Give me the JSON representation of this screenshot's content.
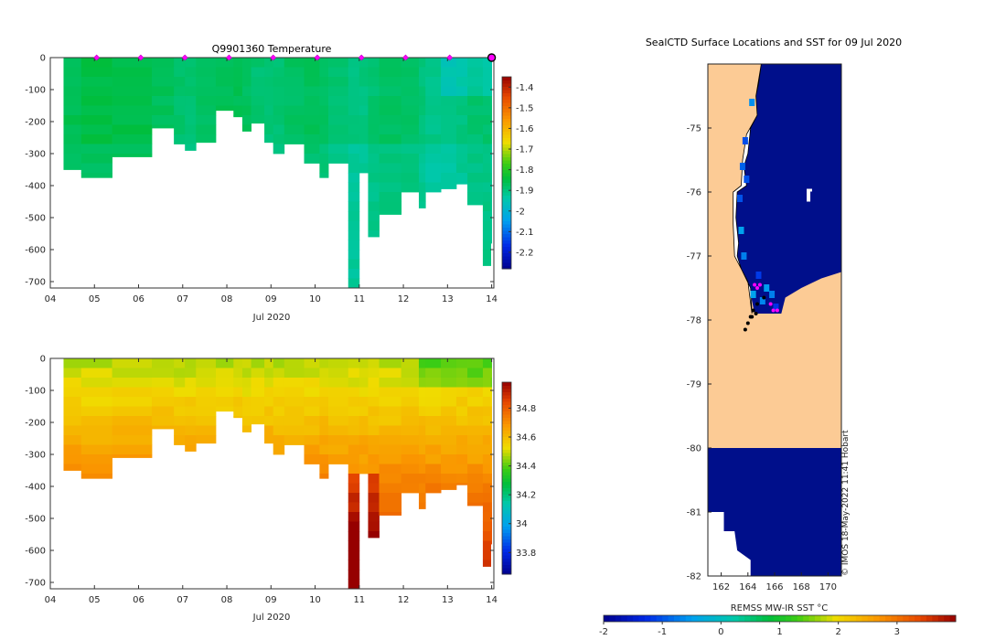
{
  "chart_data": [
    {
      "id": "temperature-section",
      "type": "heatmap",
      "title": "Q9901360  Temperature",
      "xlabel": "Jul 2020",
      "ylabel": "",
      "x_ticks": [
        "04",
        "05",
        "06",
        "07",
        "08",
        "09",
        "10",
        "11",
        "12",
        "13",
        "14"
      ],
      "x_range": [
        4,
        14.05
      ],
      "y_ticks": [
        0,
        -100,
        -200,
        -300,
        -400,
        -500,
        -600,
        -700
      ],
      "ylim": [
        -720,
        0
      ],
      "colorbar": {
        "min": -2.28,
        "max": -1.35,
        "ticks": [
          -1.4,
          -1.5,
          -1.6,
          -1.7,
          -1.8,
          -1.9,
          -2,
          -2.1,
          -2.2
        ]
      },
      "marker_days": [
        5,
        6,
        7,
        8,
        9,
        10,
        11,
        12,
        13
      ],
      "last_marker_day": 14,
      "profile_depths": [
        {
          "day": 4.3,
          "depth": -350
        },
        {
          "day": 4.7,
          "depth": -375
        },
        {
          "day": 5.4,
          "depth": -310
        },
        {
          "day": 6.3,
          "depth": -220
        },
        {
          "day": 6.8,
          "depth": -270
        },
        {
          "day": 7.05,
          "depth": -290
        },
        {
          "day": 7.3,
          "depth": -265
        },
        {
          "day": 7.75,
          "depth": -165
        },
        {
          "day": 8.15,
          "depth": -185
        },
        {
          "day": 8.35,
          "depth": -230
        },
        {
          "day": 8.55,
          "depth": -205
        },
        {
          "day": 8.85,
          "depth": -265
        },
        {
          "day": 9.05,
          "depth": -300
        },
        {
          "day": 9.3,
          "depth": -270
        },
        {
          "day": 9.75,
          "depth": -330
        },
        {
          "day": 10.1,
          "depth": -375
        },
        {
          "day": 10.3,
          "depth": -330
        },
        {
          "day": 10.75,
          "depth": -720
        },
        {
          "day": 11.0,
          "depth": -360
        },
        {
          "day": 11.2,
          "depth": -560
        },
        {
          "day": 11.45,
          "depth": -490
        },
        {
          "day": 11.95,
          "depth": -420
        },
        {
          "day": 12.35,
          "depth": -470
        },
        {
          "day": 12.5,
          "depth": -420
        },
        {
          "day": 12.85,
          "depth": -410
        },
        {
          "day": 13.2,
          "depth": -395
        },
        {
          "day": 13.45,
          "depth": -460
        },
        {
          "day": 13.8,
          "depth": -650
        },
        {
          "day": 13.98,
          "depth": -580
        }
      ]
    },
    {
      "id": "salinity-section",
      "type": "heatmap",
      "title": "",
      "xlabel": "Jul 2020",
      "ylabel": "",
      "x_ticks": [
        "04",
        "05",
        "06",
        "07",
        "08",
        "09",
        "10",
        "11",
        "12",
        "13",
        "14"
      ],
      "x_range": [
        4,
        14.05
      ],
      "y_ticks": [
        0,
        -100,
        -200,
        -300,
        -400,
        -500,
        -600,
        -700
      ],
      "ylim": [
        -720,
        0
      ],
      "colorbar": {
        "min": 33.65,
        "max": 34.98,
        "ticks": [
          34.8,
          34.6,
          34.4,
          34.2,
          34,
          33.8
        ]
      }
    },
    {
      "id": "sst-map",
      "type": "heatmap",
      "title": "SealCTD Surface Locations and SST for 09 Jul 2020",
      "x_ticks": [
        162,
        164,
        166,
        168,
        170
      ],
      "x_range": [
        161,
        171
      ],
      "y_ticks": [
        -75,
        -76,
        -77,
        -78,
        -79,
        -80,
        -81,
        -82
      ],
      "ylim": [
        -82,
        -74
      ],
      "colorbar": {
        "label": "REMSS MW-IR SST °C",
        "min": -2,
        "max": 4,
        "ticks": [
          -2,
          -1,
          0,
          1,
          2,
          3
        ]
      },
      "credit": "© IMOS 18-May-2022 11:41 Hobart",
      "land_color": "#fccb95",
      "ocean_color": "#000f8b",
      "track_points": [
        [
          164.5,
          -77.45
        ],
        [
          164.7,
          -77.5
        ],
        [
          164.9,
          -77.45
        ],
        [
          165.7,
          -77.75
        ],
        [
          165.2,
          -77.65
        ],
        [
          164.4,
          -77.85
        ],
        [
          164.6,
          -77.9
        ],
        [
          164.2,
          -77.95
        ],
        [
          164.0,
          -78.05
        ],
        [
          163.8,
          -78.15
        ],
        [
          165.9,
          -77.85
        ],
        [
          166.2,
          -77.85
        ],
        [
          164.7,
          -77.75
        ],
        [
          164.3,
          -77.95
        ]
      ]
    }
  ]
}
